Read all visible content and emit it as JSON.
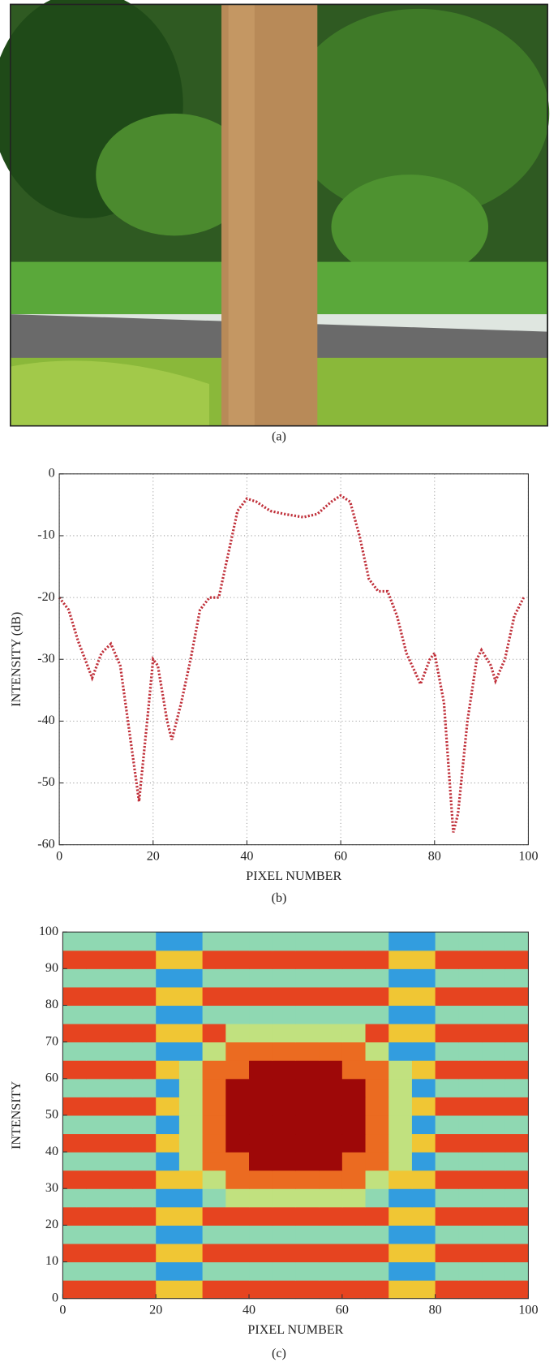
{
  "photo": {
    "caption": "(a)"
  },
  "chart_data": [
    {
      "type": "line",
      "caption": "(b)",
      "xlabel": "PIXEL NUMBER",
      "ylabel": "INTENSITY (dB)",
      "x": [
        0,
        2,
        4,
        7,
        9,
        11,
        13,
        15,
        17,
        19,
        20,
        21,
        23,
        24,
        26,
        28,
        30,
        32,
        34,
        36,
        38,
        40,
        42,
        45,
        48,
        52,
        55,
        58,
        60,
        62,
        64,
        66,
        68,
        70,
        72,
        74,
        77,
        79,
        80,
        82,
        84,
        85,
        87,
        89,
        90,
        92,
        93,
        95,
        97,
        99
      ],
      "series": [
        {
          "color": "#c0303a",
          "values": [
            -20,
            -22,
            -27,
            -33,
            -29,
            -27.5,
            -31,
            -42,
            -53,
            -38,
            -30,
            -31,
            -40,
            -43,
            -37,
            -30,
            -22,
            -20,
            -20,
            -13,
            -6,
            -4,
            -4.5,
            -6,
            -6.5,
            -7,
            -6.5,
            -4.5,
            -3.5,
            -4.5,
            -10,
            -17,
            -19,
            -19,
            -23,
            -29,
            -34,
            -30,
            -29,
            -37,
            -58,
            -55,
            -40,
            -30,
            -28.5,
            -31,
            -33.5,
            -30,
            -23,
            -20
          ]
        }
      ],
      "xlim": [
        0,
        100
      ],
      "xticks": [
        0,
        20,
        40,
        60,
        80,
        100
      ],
      "ylim": [
        -60,
        0
      ],
      "yticks": [
        -60,
        -50,
        -40,
        -30,
        -20,
        -10,
        0
      ],
      "grid": true
    },
    {
      "type": "heatmap",
      "caption": "(c)",
      "xlabel": "PIXEL NUMBER",
      "ylabel": "INTENSITY",
      "colormap": "jet",
      "xlim": [
        0,
        100
      ],
      "xticks": [
        0,
        20,
        40,
        60,
        80,
        100
      ],
      "ylim": [
        0,
        100
      ],
      "yticks": [
        0,
        10,
        20,
        30,
        40,
        50,
        60,
        70,
        80,
        90,
        100
      ],
      "grid": false,
      "z": [
        [
          0.75,
          0.75,
          0.75,
          0.75,
          0.55,
          0.55,
          0.75,
          0.75,
          0.75,
          0.75,
          0.75,
          0.75,
          0.75,
          0.75,
          0.55,
          0.55,
          0.75,
          0.75,
          0.75,
          0.75
        ],
        [
          0.3,
          0.3,
          0.3,
          0.3,
          0.1,
          0.1,
          0.3,
          0.3,
          0.3,
          0.3,
          0.3,
          0.3,
          0.3,
          0.3,
          0.1,
          0.1,
          0.3,
          0.3,
          0.3,
          0.3
        ],
        [
          0.75,
          0.75,
          0.75,
          0.75,
          0.55,
          0.55,
          0.75,
          0.75,
          0.75,
          0.75,
          0.75,
          0.75,
          0.75,
          0.75,
          0.55,
          0.55,
          0.75,
          0.75,
          0.75,
          0.75
        ],
        [
          0.3,
          0.3,
          0.3,
          0.3,
          0.1,
          0.1,
          0.3,
          0.3,
          0.3,
          0.3,
          0.3,
          0.3,
          0.3,
          0.3,
          0.1,
          0.1,
          0.3,
          0.3,
          0.3,
          0.3
        ],
        [
          0.75,
          0.75,
          0.75,
          0.75,
          0.55,
          0.55,
          0.75,
          0.75,
          0.75,
          0.75,
          0.75,
          0.75,
          0.75,
          0.75,
          0.55,
          0.55,
          0.75,
          0.75,
          0.75,
          0.75
        ],
        [
          0.3,
          0.3,
          0.3,
          0.3,
          0.1,
          0.1,
          0.3,
          0.4,
          0.4,
          0.4,
          0.4,
          0.4,
          0.4,
          0.3,
          0.1,
          0.1,
          0.3,
          0.3,
          0.3,
          0.3
        ],
        [
          0.75,
          0.75,
          0.75,
          0.75,
          0.55,
          0.55,
          0.4,
          0.7,
          0.7,
          0.7,
          0.7,
          0.7,
          0.7,
          0.4,
          0.55,
          0.55,
          0.75,
          0.75,
          0.75,
          0.75
        ],
        [
          0.3,
          0.3,
          0.3,
          0.3,
          0.1,
          0.4,
          0.7,
          0.7,
          0.95,
          0.95,
          0.95,
          0.95,
          0.7,
          0.7,
          0.4,
          0.1,
          0.3,
          0.3,
          0.3,
          0.3
        ],
        [
          0.75,
          0.75,
          0.75,
          0.75,
          0.55,
          0.4,
          0.7,
          0.95,
          0.95,
          0.95,
          0.95,
          0.95,
          0.95,
          0.7,
          0.4,
          0.55,
          0.75,
          0.75,
          0.75,
          0.75
        ],
        [
          0.3,
          0.3,
          0.3,
          0.3,
          0.1,
          0.4,
          0.7,
          0.95,
          0.95,
          0.95,
          0.95,
          0.95,
          0.95,
          0.7,
          0.4,
          0.1,
          0.3,
          0.3,
          0.3,
          0.3
        ],
        [
          0.75,
          0.75,
          0.75,
          0.75,
          0.55,
          0.4,
          0.7,
          0.95,
          0.95,
          0.95,
          0.95,
          0.95,
          0.95,
          0.7,
          0.4,
          0.55,
          0.75,
          0.75,
          0.75,
          0.75
        ],
        [
          0.3,
          0.3,
          0.3,
          0.3,
          0.1,
          0.4,
          0.7,
          0.95,
          0.95,
          0.95,
          0.95,
          0.95,
          0.95,
          0.7,
          0.4,
          0.1,
          0.3,
          0.3,
          0.3,
          0.3
        ],
        [
          0.75,
          0.75,
          0.75,
          0.75,
          0.55,
          0.4,
          0.7,
          0.7,
          0.95,
          0.95,
          0.95,
          0.95,
          0.7,
          0.7,
          0.4,
          0.55,
          0.75,
          0.75,
          0.75,
          0.75
        ],
        [
          0.3,
          0.3,
          0.3,
          0.3,
          0.1,
          0.1,
          0.4,
          0.7,
          0.7,
          0.7,
          0.7,
          0.7,
          0.7,
          0.4,
          0.1,
          0.1,
          0.3,
          0.3,
          0.3,
          0.3
        ],
        [
          0.75,
          0.75,
          0.75,
          0.75,
          0.55,
          0.55,
          0.75,
          0.4,
          0.4,
          0.4,
          0.4,
          0.4,
          0.4,
          0.75,
          0.55,
          0.55,
          0.75,
          0.75,
          0.75,
          0.75
        ],
        [
          0.3,
          0.3,
          0.3,
          0.3,
          0.1,
          0.1,
          0.3,
          0.3,
          0.3,
          0.3,
          0.3,
          0.3,
          0.3,
          0.3,
          0.1,
          0.1,
          0.3,
          0.3,
          0.3,
          0.3
        ],
        [
          0.75,
          0.75,
          0.75,
          0.75,
          0.55,
          0.55,
          0.75,
          0.75,
          0.75,
          0.75,
          0.75,
          0.75,
          0.75,
          0.75,
          0.55,
          0.55,
          0.75,
          0.75,
          0.75,
          0.75
        ],
        [
          0.3,
          0.3,
          0.3,
          0.3,
          0.1,
          0.1,
          0.3,
          0.3,
          0.3,
          0.3,
          0.3,
          0.3,
          0.3,
          0.3,
          0.1,
          0.1,
          0.3,
          0.3,
          0.3,
          0.3
        ],
        [
          0.75,
          0.75,
          0.75,
          0.75,
          0.55,
          0.55,
          0.75,
          0.75,
          0.75,
          0.75,
          0.75,
          0.75,
          0.75,
          0.75,
          0.55,
          0.55,
          0.75,
          0.75,
          0.75,
          0.75
        ],
        [
          0.3,
          0.3,
          0.3,
          0.3,
          0.1,
          0.1,
          0.3,
          0.3,
          0.3,
          0.3,
          0.3,
          0.3,
          0.3,
          0.3,
          0.1,
          0.1,
          0.3,
          0.3,
          0.3,
          0.3
        ]
      ]
    }
  ]
}
